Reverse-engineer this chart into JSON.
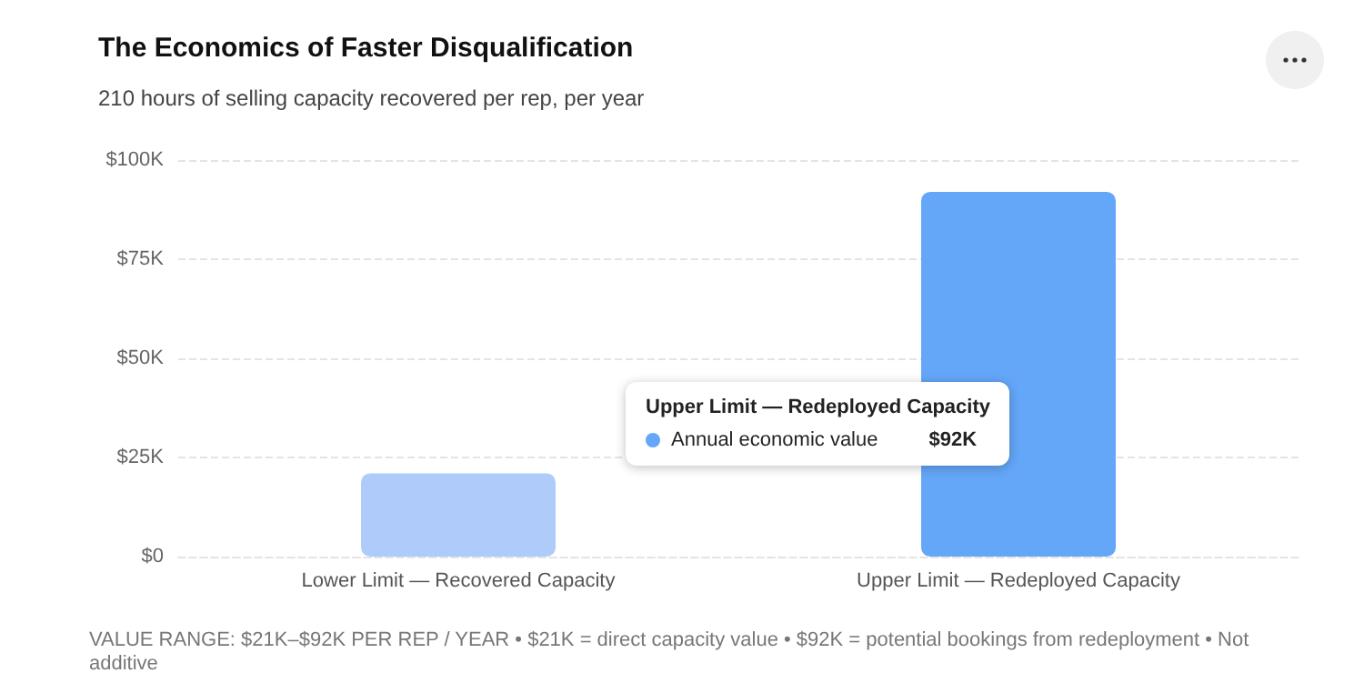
{
  "chart_data": {
    "type": "bar",
    "title": "The Economics of Faster Disqualification",
    "subtitle": "210 hours of selling capacity recovered per rep, per year",
    "categories": [
      "Lower Limit — Recovered Capacity",
      "Upper Limit — Redeployed Capacity"
    ],
    "series": [
      {
        "name": "Annual economic value",
        "colors": [
          "#aecbfa",
          "#64a6f8"
        ],
        "values": [
          21000,
          92000
        ],
        "value_labels": [
          null,
          "$92K"
        ]
      }
    ],
    "ylim": [
      0,
      100000
    ],
    "yticks": [
      {
        "value": 0,
        "label": "$0"
      },
      {
        "value": 25000,
        "label": "$25K"
      },
      {
        "value": 50000,
        "label": "$50K"
      },
      {
        "value": 75000,
        "label": "$75K"
      },
      {
        "value": 100000,
        "label": "$100K"
      }
    ],
    "grid": "y",
    "legend": "center",
    "annotations": [
      "Upper Limit — Redeployed Capacity",
      "VALUE RANGE: $21K–$92K PER REP / YEAR • $21K = direct capacity value • $92K = potential bookings from redeployment • Not additive"
    ]
  }
}
